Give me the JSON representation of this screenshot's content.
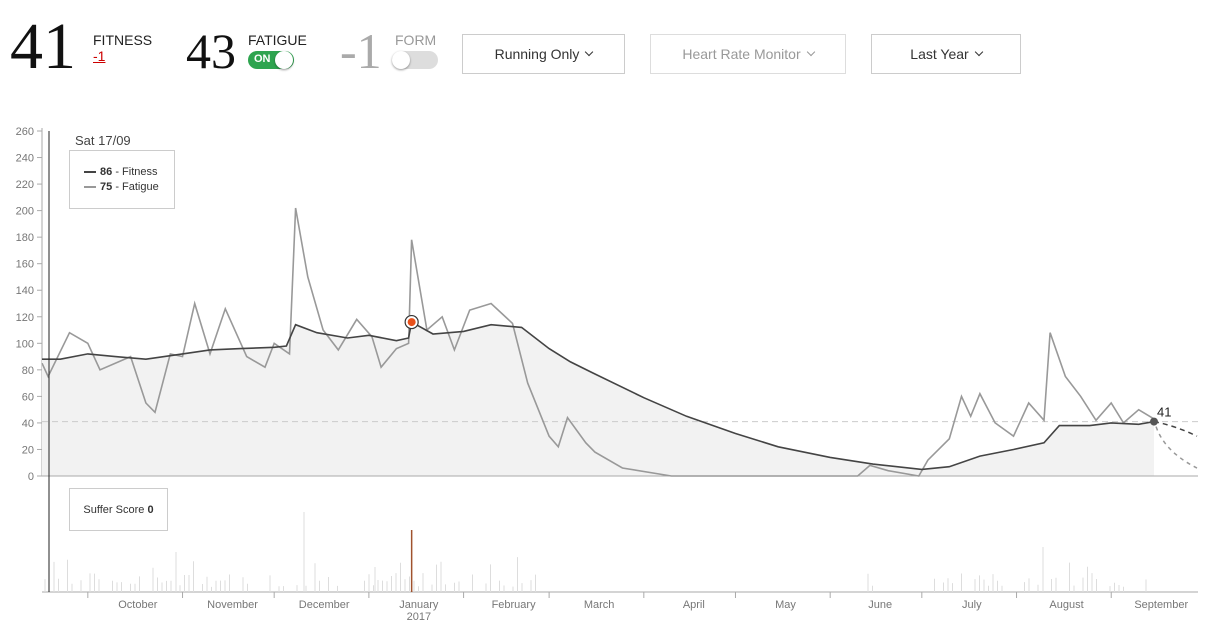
{
  "header": {
    "fitness": {
      "value": "41",
      "label": "FITNESS",
      "delta": "-1"
    },
    "fatigue": {
      "value": "43",
      "label": "FATIGUE",
      "toggle": "ON"
    },
    "form": {
      "value": "-1",
      "label": "FORM"
    }
  },
  "filters": {
    "activity": "Running Only",
    "heart_rate": "Heart Rate Monitor",
    "range": "Last Year"
  },
  "colors": {
    "fitness": "#444444",
    "fatigue": "#999999",
    "toggle_on": "#2ea44f",
    "highlight": "#e8501a",
    "delta": "#cc0000",
    "suffer_highlight": "#a0522d"
  },
  "chart_data": {
    "type": "line",
    "ylim": [
      0,
      260
    ],
    "yticks": [
      "0",
      "20",
      "40",
      "60",
      "80",
      "100",
      "120",
      "140",
      "160",
      "180",
      "200",
      "220",
      "240",
      "260"
    ],
    "x_ticks": [
      {
        "label": "October",
        "date": "2016-10-01"
      },
      {
        "label": "November",
        "date": "2016-11-01"
      },
      {
        "label": "December",
        "date": "2016-12-01"
      },
      {
        "label": "January",
        "sub": "2017",
        "date": "2017-01-01"
      },
      {
        "label": "February",
        "date": "2017-02-01"
      },
      {
        "label": "March",
        "date": "2017-03-01"
      },
      {
        "label": "April",
        "date": "2017-04-01"
      },
      {
        "label": "May",
        "date": "2017-05-01"
      },
      {
        "label": "June",
        "date": "2017-06-01"
      },
      {
        "label": "July",
        "date": "2017-07-01"
      },
      {
        "label": "August",
        "date": "2017-08-01"
      },
      {
        "label": "September",
        "date": "2017-09-01"
      }
    ],
    "hover": {
      "date_label": "Sat 17/09",
      "date": "2016-09-17",
      "fitness": {
        "value": "86",
        "label": "- Fitness"
      },
      "fatigue": {
        "value": "75",
        "label": "- Fatigue"
      }
    },
    "current_label": "41",
    "reference_line": 41,
    "highlight_point": {
      "date": "2017-01-15",
      "value": 116
    },
    "series": [
      {
        "name": "Fitness",
        "points": [
          [
            "2016-09-16",
            88
          ],
          [
            "2016-09-22",
            88
          ],
          [
            "2016-10-01",
            92
          ],
          [
            "2016-10-10",
            90
          ],
          [
            "2016-10-20",
            88
          ],
          [
            "2016-11-01",
            92
          ],
          [
            "2016-11-10",
            95
          ],
          [
            "2016-11-20",
            96
          ],
          [
            "2016-12-01",
            97
          ],
          [
            "2016-12-05",
            98
          ],
          [
            "2016-12-08",
            114
          ],
          [
            "2016-12-15",
            108
          ],
          [
            "2016-12-25",
            104
          ],
          [
            "2017-01-01",
            106
          ],
          [
            "2017-01-10",
            102
          ],
          [
            "2017-01-14",
            104
          ],
          [
            "2017-01-15",
            116
          ],
          [
            "2017-01-22",
            107
          ],
          [
            "2017-02-01",
            109
          ],
          [
            "2017-02-10",
            114
          ],
          [
            "2017-02-20",
            112
          ],
          [
            "2017-03-01",
            96
          ],
          [
            "2017-03-08",
            86
          ],
          [
            "2017-03-15",
            78
          ],
          [
            "2017-04-01",
            59
          ],
          [
            "2017-04-15",
            45
          ],
          [
            "2017-05-01",
            32
          ],
          [
            "2017-05-15",
            22
          ],
          [
            "2017-06-01",
            14
          ],
          [
            "2017-06-15",
            9
          ],
          [
            "2017-07-01",
            5
          ],
          [
            "2017-07-10",
            7
          ],
          [
            "2017-07-20",
            15
          ],
          [
            "2017-07-31",
            20
          ],
          [
            "2017-08-10",
            25
          ],
          [
            "2017-08-15",
            38
          ],
          [
            "2017-08-25",
            38
          ],
          [
            "2017-09-01",
            40
          ],
          [
            "2017-09-10",
            39
          ],
          [
            "2017-09-15",
            41
          ]
        ]
      },
      {
        "name": "Fatigue",
        "points": [
          [
            "2016-09-16",
            85
          ],
          [
            "2016-09-18",
            75
          ],
          [
            "2016-09-25",
            108
          ],
          [
            "2016-10-01",
            100
          ],
          [
            "2016-10-05",
            80
          ],
          [
            "2016-10-15",
            90
          ],
          [
            "2016-10-20",
            55
          ],
          [
            "2016-10-23",
            48
          ],
          [
            "2016-10-28",
            92
          ],
          [
            "2016-11-01",
            90
          ],
          [
            "2016-11-05",
            130
          ],
          [
            "2016-11-10",
            92
          ],
          [
            "2016-11-15",
            126
          ],
          [
            "2016-11-22",
            90
          ],
          [
            "2016-11-28",
            82
          ],
          [
            "2016-12-01",
            100
          ],
          [
            "2016-12-06",
            92
          ],
          [
            "2016-12-08",
            202
          ],
          [
            "2016-12-12",
            150
          ],
          [
            "2016-12-17",
            110
          ],
          [
            "2016-12-22",
            95
          ],
          [
            "2016-12-28",
            118
          ],
          [
            "2017-01-02",
            105
          ],
          [
            "2017-01-05",
            82
          ],
          [
            "2017-01-10",
            96
          ],
          [
            "2017-01-14",
            100
          ],
          [
            "2017-01-15",
            178
          ],
          [
            "2017-01-20",
            110
          ],
          [
            "2017-01-25",
            120
          ],
          [
            "2017-01-29",
            95
          ],
          [
            "2017-02-03",
            125
          ],
          [
            "2017-02-10",
            130
          ],
          [
            "2017-02-17",
            115
          ],
          [
            "2017-02-22",
            70
          ],
          [
            "2017-03-01",
            30
          ],
          [
            "2017-03-04",
            22
          ],
          [
            "2017-03-07",
            44
          ],
          [
            "2017-03-13",
            25
          ],
          [
            "2017-03-16",
            18
          ],
          [
            "2017-03-25",
            6
          ],
          [
            "2017-04-10",
            0
          ],
          [
            "2017-06-10",
            0
          ],
          [
            "2017-06-14",
            8
          ],
          [
            "2017-06-20",
            4
          ],
          [
            "2017-06-30",
            0
          ],
          [
            "2017-07-03",
            12
          ],
          [
            "2017-07-10",
            28
          ],
          [
            "2017-07-14",
            60
          ],
          [
            "2017-07-17",
            45
          ],
          [
            "2017-07-20",
            62
          ],
          [
            "2017-07-25",
            40
          ],
          [
            "2017-07-31",
            30
          ],
          [
            "2017-08-05",
            55
          ],
          [
            "2017-08-10",
            42
          ],
          [
            "2017-08-12",
            108
          ],
          [
            "2017-08-17",
            75
          ],
          [
            "2017-08-22",
            60
          ],
          [
            "2017-08-27",
            42
          ],
          [
            "2017-09-01",
            55
          ],
          [
            "2017-09-05",
            40
          ],
          [
            "2017-09-10",
            50
          ],
          [
            "2017-09-15",
            43
          ]
        ]
      }
    ],
    "projection": {
      "fitness_end": 30,
      "fatigue_end": 6
    },
    "suffer_score": {
      "label": "Suffer Score",
      "value": "0",
      "highlight_date": "2017-01-15"
    }
  }
}
